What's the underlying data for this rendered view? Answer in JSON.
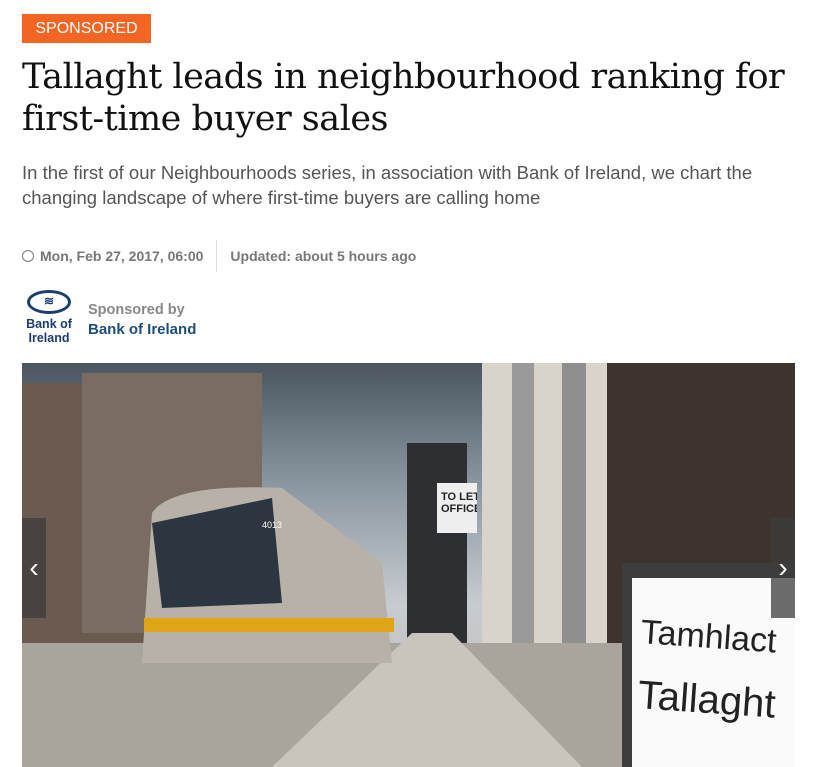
{
  "badge": "SPONSORED",
  "headline": "Tallaght leads in neighbourhood ranking for first-time buyer sales",
  "subtitle": "In the first of our Neighbourhoods series, in association with Bank of Ireland, we chart the changing landscape of where first-time buyers are calling home",
  "meta": {
    "date": "Mon, Feb 27, 2017, 06:00",
    "updated": "Updated: about 5 hours ago",
    "icon": "clock-icon"
  },
  "sponsor": {
    "logo_text": "Bank of Ireland",
    "label": "Sponsored by",
    "name": "Bank of Ireland",
    "brand_color": "#1d3c6e"
  },
  "gallery": {
    "prev": "‹",
    "next": "›",
    "sign_line1": "Tamhlact",
    "sign_line2": "Tallaght",
    "tram_number": "4013",
    "poster": "TO LET OFFICE"
  },
  "colors": {
    "accent": "#f26522"
  }
}
